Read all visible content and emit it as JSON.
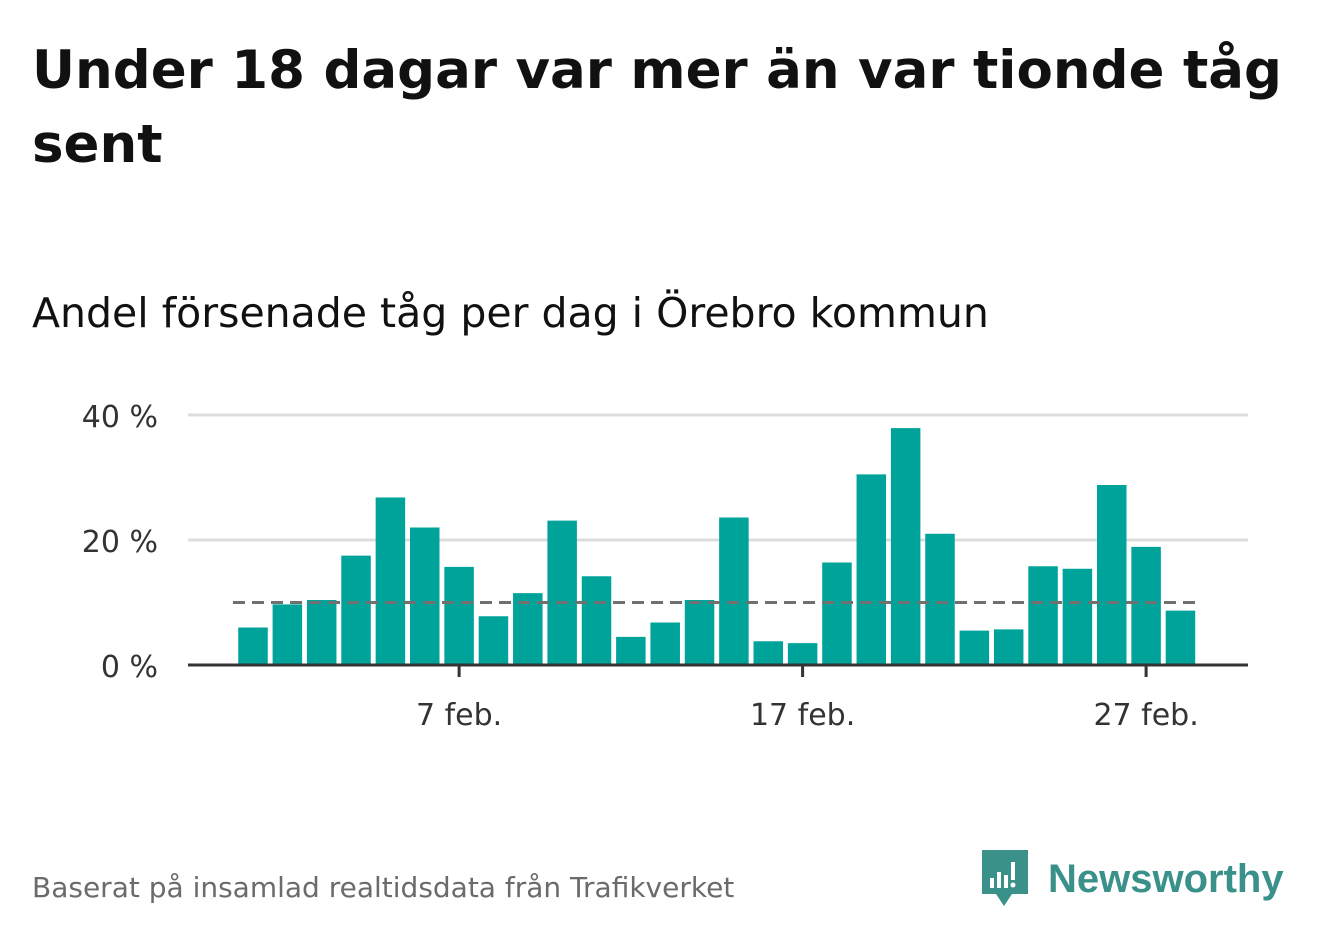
{
  "title": "Under 18 dagar var mer än var tionde tåg sent",
  "subtitle": "Andel försenade tåg per dag i Örebro kommun",
  "source": "Baserat på insamlad realtidsdata från Trafikverket",
  "brand": "Newsworthy",
  "colors": {
    "bar": "#00a39a",
    "reference": "#707070",
    "grid": "#dddddd",
    "axis": "#333333",
    "brand": "#3a918a"
  },
  "chart_data": {
    "type": "bar",
    "x": [
      "2021-02-01",
      "2021-02-02",
      "2021-02-03",
      "2021-02-04",
      "2021-02-05",
      "2021-02-06",
      "2021-02-07",
      "2021-02-08",
      "2021-02-09",
      "2021-02-10",
      "2021-02-11",
      "2021-02-12",
      "2021-02-13",
      "2021-02-14",
      "2021-02-15",
      "2021-02-16",
      "2021-02-17",
      "2021-02-18",
      "2021-02-19",
      "2021-02-20",
      "2021-02-21",
      "2021-02-22",
      "2021-02-23",
      "2021-02-24",
      "2021-02-25",
      "2021-02-26",
      "2021-02-27",
      "2021-02-28"
    ],
    "values": [
      6,
      9.7,
      10.4,
      17.5,
      26.8,
      22,
      15.7,
      7.8,
      11.5,
      23.1,
      14.2,
      4.5,
      6.8,
      10.4,
      23.6,
      3.8,
      3.5,
      16.4,
      30.5,
      37.9,
      21,
      5.5,
      5.7,
      15.8,
      15.4,
      28.8,
      18.9,
      8.7
    ],
    "reference_line": 10,
    "ylim": [
      0,
      40
    ],
    "yticks": [
      0,
      20,
      40
    ],
    "ytick_labels": [
      "0 %",
      "20 %",
      "40 %"
    ],
    "xticks": [
      {
        "date": "2021-02-07",
        "label": "7 feb."
      },
      {
        "date": "2021-02-17",
        "label": "17 feb."
      },
      {
        "date": "2021-02-27",
        "label": "27 feb."
      }
    ],
    "xlabel": "",
    "ylabel": "",
    "grid": true
  }
}
